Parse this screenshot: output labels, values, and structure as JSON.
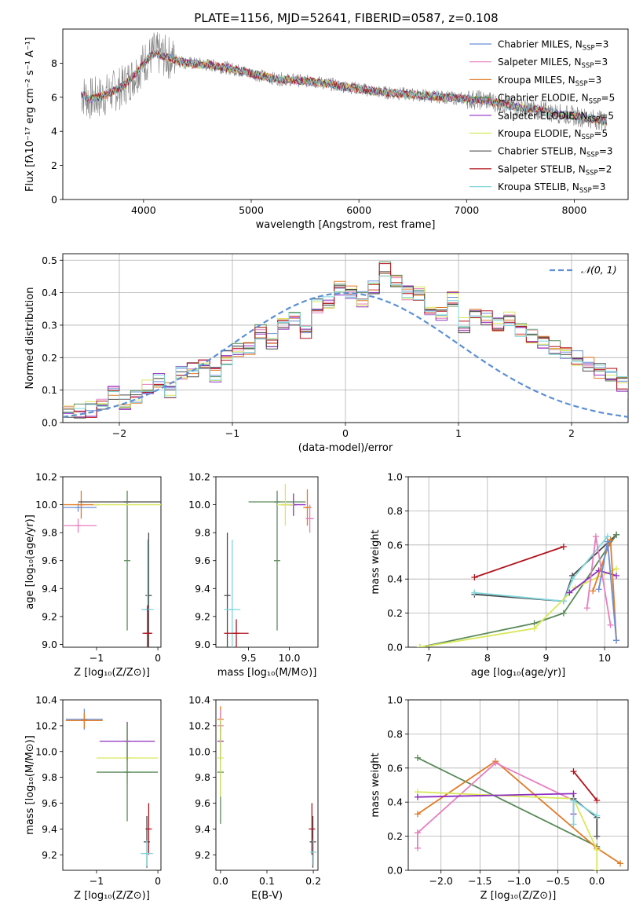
{
  "figure_title": "PLATE=1156, MJD=52641, FIBERID=0587, z=0.108",
  "legend_entries": [
    {
      "model": "Chabrier MILES",
      "nssp": "3",
      "color": "#6a8fd6"
    },
    {
      "model": "Salpeter MILES",
      "nssp": "3",
      "color": "#e67fbf"
    },
    {
      "model": "Kroupa MILES",
      "nssp": "3",
      "color": "#e07b26"
    },
    {
      "model": "Chabrier ELODIE",
      "nssp": "5",
      "color": "#5a8a5a"
    },
    {
      "model": "Salpeter ELODIE",
      "nssp": "5",
      "color": "#8e2fbf"
    },
    {
      "model": "Kroupa ELODIE",
      "nssp": "5",
      "color": "#d9e85a"
    },
    {
      "model": "Chabrier STELIB",
      "nssp": "3",
      "color": "#4a4a4a"
    },
    {
      "model": "Salpeter STELIB",
      "nssp": "2",
      "color": "#b3121c"
    },
    {
      "model": "Kroupa STELIB",
      "nssp": "3",
      "color": "#7fd6dc"
    }
  ],
  "chart_data": [
    {
      "id": "spectrum",
      "type": "line",
      "xlabel": "wavelength [Angstrom, rest frame]",
      "ylabel": "Flux [fλ10⁻¹⁷ erg cm⁻² s⁻¹ A⁻¹]",
      "xlim": [
        3250,
        8500
      ],
      "ylim": [
        0,
        10
      ],
      "xticks": [
        4000,
        5000,
        6000,
        7000,
        8000
      ],
      "yticks": [
        0,
        2,
        4,
        6,
        8
      ],
      "data_color": "#808080",
      "continuum": [
        [
          3420,
          6.2
        ],
        [
          3500,
          5.9
        ],
        [
          3600,
          6.0
        ],
        [
          3700,
          6.3
        ],
        [
          3800,
          6.6
        ],
        [
          3900,
          7.2
        ],
        [
          4000,
          8.0
        ],
        [
          4100,
          8.6
        ],
        [
          4200,
          8.4
        ],
        [
          4400,
          8.0
        ],
        [
          4600,
          7.9
        ],
        [
          4800,
          7.7
        ],
        [
          5000,
          7.4
        ],
        [
          5200,
          7.1
        ],
        [
          5400,
          7.0
        ],
        [
          5600,
          6.9
        ],
        [
          5800,
          6.7
        ],
        [
          6000,
          6.5
        ],
        [
          6200,
          6.3
        ],
        [
          6400,
          6.2
        ],
        [
          6600,
          6.1
        ],
        [
          6800,
          6.0
        ],
        [
          7000,
          5.9
        ],
        [
          7200,
          5.8
        ],
        [
          7400,
          5.5
        ],
        [
          7600,
          5.3
        ],
        [
          7800,
          5.1
        ],
        [
          8000,
          4.9
        ],
        [
          8200,
          4.7
        ],
        [
          8300,
          4.6
        ]
      ]
    },
    {
      "id": "residuals",
      "type": "histogram",
      "xlabel": "(data-model)/error",
      "ylabel": "Normed distribution",
      "xlim": [
        -2.5,
        2.5
      ],
      "ylim": [
        0,
        0.52
      ],
      "xticks": [
        -2,
        -1,
        0,
        1,
        2
      ],
      "yticks": [
        0.0,
        0.1,
        0.2,
        0.3,
        0.4,
        0.5
      ],
      "grid": true,
      "legend_label": "𝒩(0, 1)",
      "gaussian_color": "#5b8fd6",
      "bin_width": 0.1,
      "bins_from": -2.5,
      "values": [
        0.03,
        0.035,
        0.04,
        0.05,
        0.09,
        0.06,
        0.08,
        0.11,
        0.13,
        0.1,
        0.15,
        0.16,
        0.17,
        0.15,
        0.2,
        0.22,
        0.23,
        0.28,
        0.25,
        0.3,
        0.32,
        0.28,
        0.36,
        0.37,
        0.41,
        0.4,
        0.38,
        0.42,
        0.47,
        0.44,
        0.4,
        0.4,
        0.35,
        0.34,
        0.38,
        0.3,
        0.33,
        0.32,
        0.3,
        0.32,
        0.29,
        0.27,
        0.25,
        0.23,
        0.22,
        0.2,
        0.18,
        0.16,
        0.15,
        0.12,
        0.1,
        0.09,
        0.08,
        0.07,
        0.07,
        0.06,
        0.05,
        0.04,
        0.04,
        0.03
      ]
    },
    {
      "id": "age_vs_Z",
      "type": "scatter",
      "xlabel": "Z [log₁₀(Z/Z⊙)]",
      "ylabel": "age  [log₁₀(age/yr)]",
      "xlim": [
        -1.55,
        0.05
      ],
      "ylim": [
        8.98,
        10.2
      ],
      "xticks": [
        -1,
        0
      ],
      "yticks": [
        9.0,
        9.2,
        9.4,
        9.6,
        9.8,
        10.0,
        10.2
      ],
      "points": [
        {
          "x": -1.3,
          "y": 9.98,
          "xerr": 0.3,
          "yerr": 0.03,
          "color": "#6a8fd6"
        },
        {
          "x": -1.3,
          "y": 9.85,
          "xerr": 0.3,
          "yerr": 0.05,
          "color": "#e67fbf"
        },
        {
          "x": -1.25,
          "y": 10.0,
          "xerr": 0.3,
          "yerr": 0.1,
          "color": "#e07b26"
        },
        {
          "x": -0.5,
          "y": 10.02,
          "xerr": 0.8,
          "yerr": 0.0,
          "color": "#4a4a4a"
        },
        {
          "x": -0.5,
          "y": 9.6,
          "xerr": 0.0,
          "yerr": 0.5,
          "color": "#5a8a5a"
        },
        {
          "x": -0.5,
          "y": 10.0,
          "xerr": 0.55,
          "yerr": 0.0,
          "color": "#d9e85a"
        },
        {
          "x": -0.15,
          "y": 9.35,
          "xerr": 0.0,
          "yerr": 0.45,
          "color": "#4a4a4a"
        },
        {
          "x": -0.17,
          "y": 9.25,
          "xerr": 0.1,
          "yerr": 0.5,
          "color": "#7fd6dc"
        },
        {
          "x": -0.17,
          "y": 9.08,
          "xerr": 0.08,
          "yerr": 0.2,
          "color": "#b3121c"
        }
      ]
    },
    {
      "id": "age_vs_mass",
      "type": "scatter",
      "xlabel": "mass [log₁₀(M/M⊙)]",
      "ylabel": "",
      "xlim": [
        9.1,
        10.35
      ],
      "ylim": [
        8.98,
        10.2
      ],
      "xticks": [
        9.5,
        10.0
      ],
      "yticks": [
        9.0,
        9.2,
        9.4,
        9.6,
        9.8,
        10.0,
        10.2
      ],
      "points": [
        {
          "x": 9.85,
          "y": 10.02,
          "xerr": 0.35,
          "yerr": 0.0,
          "color": "#5a8a5a"
        },
        {
          "x": 9.85,
          "y": 9.6,
          "xerr": 0.0,
          "yerr": 0.5,
          "color": "#5a8a5a"
        },
        {
          "x": 10.05,
          "y": 10.0,
          "xerr": 0.15,
          "yerr": 0.08,
          "color": "#8e2fbf"
        },
        {
          "x": 9.95,
          "y": 10.0,
          "xerr": 0.1,
          "yerr": 0.15,
          "color": "#d9e85a"
        },
        {
          "x": 10.22,
          "y": 9.98,
          "xerr": 0.05,
          "yerr": 0.13,
          "color": "#e07b26"
        },
        {
          "x": 10.25,
          "y": 9.9,
          "xerr": 0.05,
          "yerr": 0.1,
          "color": "#e67fbf"
        },
        {
          "x": 9.24,
          "y": 9.35,
          "xerr": 0.0,
          "yerr": 0.45,
          "color": "#4a4a4a"
        },
        {
          "x": 9.3,
          "y": 9.25,
          "xerr": 0.1,
          "yerr": 0.5,
          "color": "#7fd6dc"
        },
        {
          "x": 9.35,
          "y": 9.08,
          "xerr": 0.15,
          "yerr": 0.1,
          "color": "#b3121c"
        }
      ]
    },
    {
      "id": "weight_vs_age",
      "type": "line",
      "xlabel": "age  [log₁₀(age/yr)]",
      "ylabel": "mass weight",
      "xlim": [
        6.65,
        10.4
      ],
      "ylim": [
        0,
        1
      ],
      "xticks": [
        7,
        8,
        9,
        10
      ],
      "yticks": [
        0.0,
        0.2,
        0.4,
        0.6,
        0.8,
        1.0
      ],
      "grid": true,
      "series": [
        {
          "color": "#b3121c",
          "x": [
            7.78,
            9.3
          ],
          "y": [
            0.41,
            0.59
          ]
        },
        {
          "color": "#4a4a4a",
          "x": [
            7.78,
            9.3,
            9.45,
            10.2
          ],
          "y": [
            0.31,
            0.27,
            0.42,
            0.66
          ]
        },
        {
          "color": "#7fd6dc",
          "x": [
            7.78,
            9.3,
            9.45,
            10.05
          ],
          "y": [
            0.32,
            0.27,
            0.4,
            0.65
          ]
        },
        {
          "color": "#5a8a5a",
          "x": [
            6.85,
            8.8,
            9.3,
            10.2
          ],
          "y": [
            0.0,
            0.14,
            0.2,
            0.66
          ]
        },
        {
          "color": "#d9e85a",
          "x": [
            6.85,
            8.8,
            9.5,
            10.2
          ],
          "y": [
            0.0,
            0.11,
            0.35,
            0.46
          ]
        },
        {
          "color": "#8e2fbf",
          "x": [
            9.4,
            9.9,
            10.2
          ],
          "y": [
            0.32,
            0.45,
            0.42
          ]
        },
        {
          "color": "#e67fbf",
          "x": [
            9.7,
            9.85,
            10.1
          ],
          "y": [
            0.23,
            0.65,
            0.13
          ]
        },
        {
          "color": "#e07b26",
          "x": [
            9.8,
            10.1,
            10.2
          ],
          "y": [
            0.33,
            0.63,
            0.04
          ]
        },
        {
          "color": "#6a8fd6",
          "x": [
            9.9,
            10.05,
            10.2
          ],
          "y": [
            0.34,
            0.62,
            0.04
          ]
        }
      ]
    },
    {
      "id": "mass_vs_Z",
      "type": "scatter",
      "xlabel": "Z [log₁₀(Z/Z⊙)]",
      "ylabel": "mass [log₁₀(M/M⊙)]",
      "xlim": [
        -1.55,
        0.05
      ],
      "ylim": [
        9.08,
        10.4
      ],
      "xticks": [
        -1,
        0
      ],
      "yticks": [
        9.2,
        9.4,
        9.6,
        9.8,
        10.0,
        10.2,
        10.4
      ],
      "points": [
        {
          "x": -1.2,
          "y": 10.25,
          "xerr": 0.3,
          "yerr": 0.08,
          "color": "#6a8fd6"
        },
        {
          "x": -1.2,
          "y": 10.24,
          "xerr": 0.3,
          "yerr": 0.06,
          "color": "#e07b26"
        },
        {
          "x": -0.5,
          "y": 10.08,
          "xerr": 0.45,
          "yerr": 0.15,
          "color": "#8e2fbf"
        },
        {
          "x": -0.5,
          "y": 9.95,
          "xerr": 0.5,
          "yerr": 0.2,
          "color": "#d9e85a"
        },
        {
          "x": -0.5,
          "y": 9.84,
          "xerr": 0.5,
          "yerr": 0.38,
          "color": "#5a8a5a"
        },
        {
          "x": -0.15,
          "y": 9.4,
          "xerr": 0.0,
          "yerr": 0.2,
          "color": "#b3121c"
        },
        {
          "x": -0.18,
          "y": 9.3,
          "xerr": 0.0,
          "yerr": 0.2,
          "color": "#4a4a4a"
        },
        {
          "x": -0.18,
          "y": 9.21,
          "xerr": 0.1,
          "yerr": 0.1,
          "color": "#7fd6dc"
        }
      ]
    },
    {
      "id": "mass_vs_ebv",
      "type": "scatter",
      "xlabel": "E(B-V)",
      "ylabel": "",
      "xlim": [
        -0.01,
        0.21
      ],
      "ylim": [
        9.08,
        10.4
      ],
      "xticks": [
        0.0,
        0.1,
        0.2
      ],
      "yticks": [
        9.2,
        9.4,
        9.6,
        9.8,
        10.0,
        10.2,
        10.4
      ],
      "points": [
        {
          "x": 0.0,
          "y": 10.25,
          "xerr": 0.0,
          "yerr": 0.1,
          "color": "#e07b26"
        },
        {
          "x": 0.0,
          "y": 10.2,
          "xerr": 0.0,
          "yerr": 0.12,
          "color": "#e67fbf"
        },
        {
          "x": 0.0,
          "y": 10.08,
          "xerr": 0.0,
          "yerr": 0.15,
          "color": "#8e2fbf"
        },
        {
          "x": 0.0,
          "y": 9.84,
          "xerr": 0.0,
          "yerr": 0.4,
          "color": "#5a8a5a"
        },
        {
          "x": 0.0,
          "y": 9.95,
          "xerr": 0.0,
          "yerr": 0.3,
          "color": "#d9e85a"
        },
        {
          "x": 0.197,
          "y": 9.4,
          "xerr": 0.0,
          "yerr": 0.2,
          "color": "#b3121c"
        },
        {
          "x": 0.199,
          "y": 9.3,
          "xerr": 0.0,
          "yerr": 0.2,
          "color": "#4a4a4a"
        },
        {
          "x": 0.2,
          "y": 9.22,
          "xerr": 0.0,
          "yerr": 0.1,
          "color": "#7fd6dc"
        }
      ]
    },
    {
      "id": "weight_vs_Z",
      "type": "line",
      "xlabel": "Z [log₁₀(Z/Z⊙)]",
      "ylabel": "mass weight",
      "xlim": [
        -2.42,
        0.4
      ],
      "ylim": [
        0,
        1
      ],
      "xticks": [
        -2.0,
        -1.5,
        -1.0,
        -0.5,
        0.0
      ],
      "yticks": [
        0.0,
        0.2,
        0.4,
        0.6,
        0.8,
        1.0
      ],
      "grid": true,
      "series": [
        {
          "color": "#5a8a5a",
          "x": [
            -2.3,
            0.0
          ],
          "y": [
            0.66,
            0.14
          ]
        },
        {
          "color": "#e07b26",
          "x": [
            -2.3,
            -1.3,
            0.0,
            0.3
          ],
          "y": [
            0.33,
            0.64,
            0.13,
            0.04
          ]
        },
        {
          "color": "#e67fbf",
          "x": [
            -2.3,
            -1.3,
            -0.3
          ],
          "y": [
            0.22,
            0.63,
            0.41
          ]
        },
        {
          "color": "#e67fbf",
          "x": [
            -2.3,
            -2.3
          ],
          "y": [
            0.13,
            0.22
          ]
        },
        {
          "color": "#d9e85a",
          "x": [
            -2.3,
            -0.3,
            0.0,
            0.0
          ],
          "y": [
            0.46,
            0.42,
            0.12,
            0.0
          ]
        },
        {
          "color": "#8e2fbf",
          "x": [
            -2.3,
            -0.3,
            -0.3
          ],
          "y": [
            0.43,
            0.45,
            0.33
          ]
        },
        {
          "color": "#b3121c",
          "x": [
            -0.3,
            0.0
          ],
          "y": [
            0.58,
            0.41
          ]
        },
        {
          "color": "#4a4a4a",
          "x": [
            -0.3,
            0.0,
            0.0
          ],
          "y": [
            0.42,
            0.31,
            0.2
          ]
        },
        {
          "color": "#7fd6dc",
          "x": [
            -0.3,
            0.0
          ],
          "y": [
            0.41,
            0.32
          ]
        },
        {
          "color": "#7fd6dc",
          "x": [
            -0.3,
            -0.3
          ],
          "y": [
            0.27,
            0.41
          ]
        }
      ]
    }
  ]
}
